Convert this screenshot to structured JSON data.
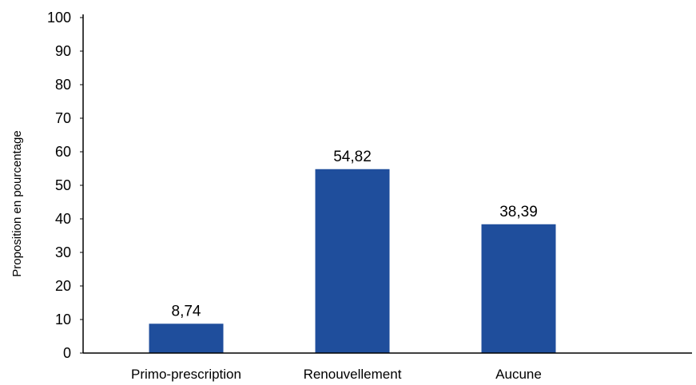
{
  "chart_data": {
    "type": "bar",
    "categories": [
      "Primo-prescription",
      "Renouvellement",
      "Aucune"
    ],
    "values": [
      8.74,
      54.82,
      38.39
    ],
    "data_labels": [
      "8,74",
      "54,82",
      "38,39"
    ],
    "ylabel": "Proposition en pourcentage",
    "xlabel": "",
    "ylim": [
      0,
      100
    ],
    "yticks": [
      0,
      10,
      20,
      30,
      40,
      50,
      60,
      70,
      80,
      90,
      100
    ],
    "grid": false,
    "legend": "none",
    "bar_color": "#1f4e9c",
    "axis_color": "#000000"
  }
}
